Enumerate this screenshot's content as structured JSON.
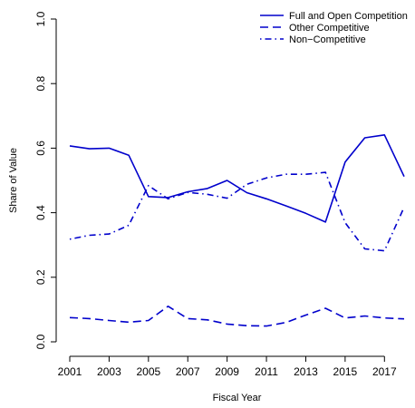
{
  "chart_data": {
    "type": "line",
    "xlabel": "Fiscal Year",
    "ylabel": "Share of Value",
    "xlim": [
      2001,
      2018
    ],
    "ylim": [
      0,
      1.0
    ],
    "x_ticks": [
      2001,
      2003,
      2005,
      2007,
      2009,
      2011,
      2013,
      2015,
      2017
    ],
    "x_tick_labels": [
      "2001",
      "2003",
      "2005",
      "2007",
      "2009",
      "2011",
      "2013",
      "2015",
      "2017"
    ],
    "y_ticks": [
      0,
      0.2,
      0.4,
      0.6,
      0.8,
      1.0
    ],
    "y_tick_labels": [
      "0.0",
      "0.2",
      "0.4",
      "0.6",
      "0.8",
      "1.0"
    ],
    "grid": false,
    "legend_position": "top-right",
    "color": "#0000cc",
    "x": [
      2001,
      2002,
      2003,
      2004,
      2005,
      2006,
      2007,
      2008,
      2009,
      2010,
      2011,
      2012,
      2013,
      2014,
      2015,
      2016,
      2017,
      2018
    ],
    "series": [
      {
        "name": "Full and Open Competition",
        "dash": "solid",
        "values": [
          0.607,
          0.598,
          0.6,
          0.578,
          0.45,
          0.447,
          0.465,
          0.475,
          0.5,
          0.462,
          0.443,
          0.421,
          0.398,
          0.371,
          0.557,
          0.632,
          0.641,
          0.512
        ]
      },
      {
        "name": "Other Competitive",
        "dash": "dashed",
        "values": [
          0.075,
          0.072,
          0.066,
          0.061,
          0.066,
          0.11,
          0.072,
          0.068,
          0.055,
          0.05,
          0.049,
          0.06,
          0.083,
          0.104,
          0.074,
          0.08,
          0.074,
          0.071
        ]
      },
      {
        "name": "Non−Competitive",
        "dash": "dotdash",
        "values": [
          0.318,
          0.33,
          0.334,
          0.361,
          0.484,
          0.443,
          0.463,
          0.457,
          0.445,
          0.488,
          0.508,
          0.519,
          0.519,
          0.525,
          0.369,
          0.288,
          0.282,
          0.417
        ]
      }
    ]
  }
}
